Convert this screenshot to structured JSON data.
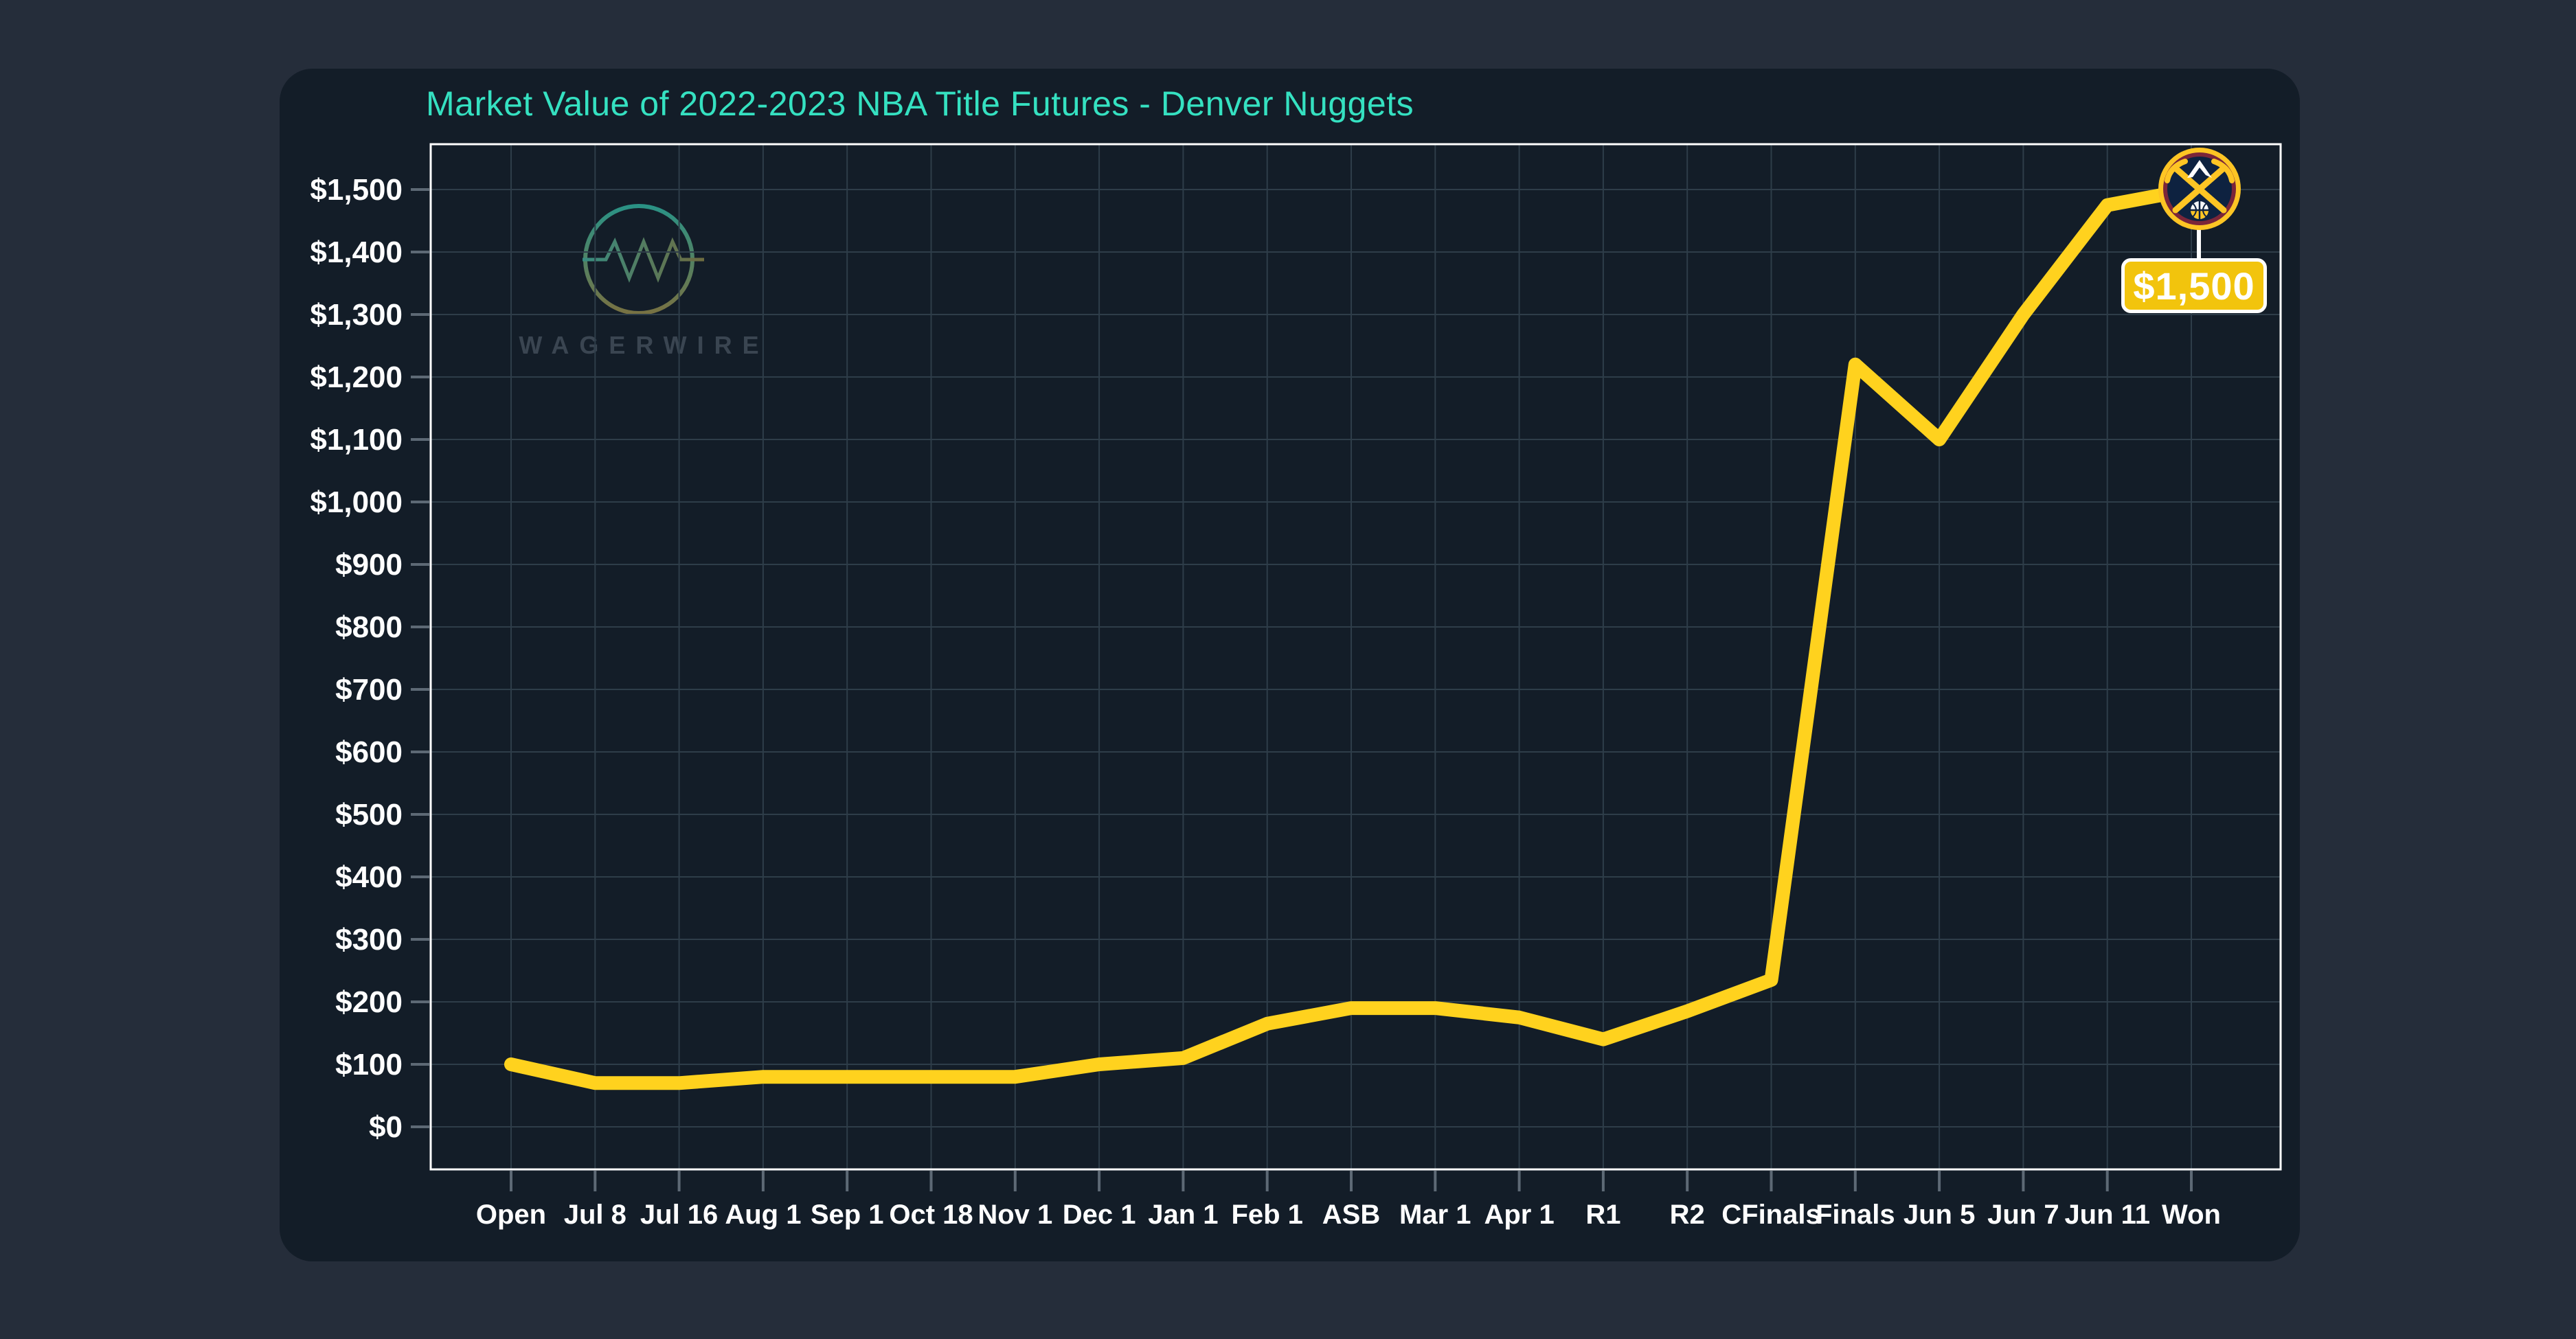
{
  "title": "Market Value of 2022-2023 NBA Title Futures - Denver Nuggets",
  "watermark": {
    "brand": "WAGERWIRE",
    "logo_icon": "circle-resistor-wave-icon"
  },
  "callout": {
    "value": "$1,500",
    "icon": "denver-nuggets-logo"
  },
  "chart_data": {
    "type": "line",
    "title": "Market Value of 2022-2023 NBA Title Futures - Denver Nuggets",
    "series_name": "Denver Nuggets title futures market value (USD)",
    "categories": [
      "Open",
      "Jul 8",
      "Jul 16",
      "Aug 1",
      "Sep 1",
      "Oct 18",
      "Nov 1",
      "Dec 1",
      "Jan 1",
      "Feb 1",
      "ASB",
      "Mar 1",
      "Apr 1",
      "R1",
      "R2",
      "CFinals",
      "Finals",
      "Jun 5",
      "Jun 7",
      "Jun 11",
      "Won"
    ],
    "values": [
      100,
      70,
      70,
      80,
      80,
      80,
      80,
      100,
      110,
      165,
      190,
      190,
      175,
      140,
      185,
      235,
      1220,
      1100,
      1300,
      1475,
      1500
    ],
    "xlabel": "",
    "ylabel": "",
    "ylim": [
      0,
      1500
    ],
    "ytick_step": 100,
    "ytick_labels": [
      "$0",
      "$100",
      "$200",
      "$300",
      "$400",
      "$500",
      "$600",
      "$700",
      "$800",
      "$900",
      "$1,000",
      "$1,100",
      "$1,200",
      "$1,300",
      "$1,400",
      "$1,500"
    ],
    "grid": true,
    "legend": "none",
    "line_color": "#ffd21e",
    "annotation": {
      "category": "Won",
      "label": "$1,500"
    }
  },
  "colors": {
    "outer_background": "#252d3a",
    "panel_background": "#131d28",
    "title_text": "#35e1c1",
    "axis_labels": "#ffffff",
    "plot_border": "#ffffff",
    "gridlines": "#2e3d49",
    "tick_marks": "#5d6975",
    "line": "#ffd21e",
    "badge_fill": "#f2c40d",
    "badge_border": "#ffffff",
    "badge_text": "#ffffff",
    "logo_gold": "#fec524",
    "logo_maroon": "#7b2639",
    "logo_navy": "#0e2240",
    "watermark_text": "#414c59"
  }
}
